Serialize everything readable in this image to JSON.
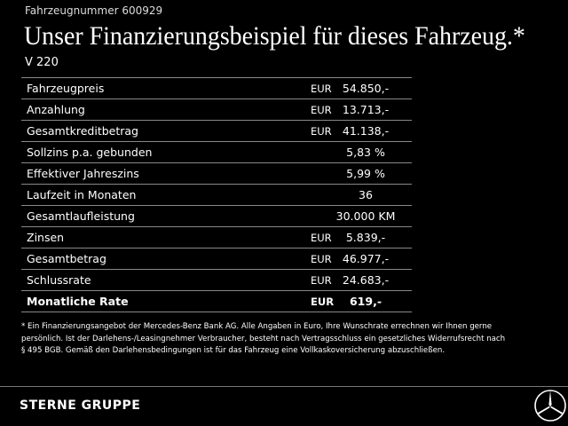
{
  "header": {
    "vehicle_number": "Fahrzeugnummer 600929",
    "title": "Unser Finanzierungsbeispiel für dieses Fahrzeug.*",
    "model": "V 220"
  },
  "table": {
    "rows": [
      {
        "label": "Fahrzeugpreis",
        "currency": "EUR",
        "value": "54.850,-"
      },
      {
        "label": "Anzahlung",
        "currency": "EUR",
        "value": "13.713,-"
      },
      {
        "label": "Gesamtkreditbetrag",
        "currency": "EUR",
        "value": "41.138,-"
      },
      {
        "label": "Sollzins p.a. gebunden",
        "value": "5,83 %"
      },
      {
        "label": "Effektiver Jahreszins",
        "value": "5,99 %"
      },
      {
        "label": "Laufzeit in Monaten",
        "value": "36"
      },
      {
        "label": "Gesamtlaufleistung",
        "value": "30.000 KM"
      },
      {
        "label": "Zinsen",
        "currency": "EUR",
        "value": "5.839,-"
      },
      {
        "label": "Gesamtbetrag",
        "currency": "EUR",
        "value": "46.977,-"
      },
      {
        "label": "Schlussrate",
        "currency": "EUR",
        "value": "24.683,-"
      },
      {
        "label": "Monatliche Rate",
        "currency": "EUR",
        "value": "619,-"
      }
    ]
  },
  "footnote": [
    "* Ein Finanzierungsangebot der Mercedes-Benz Bank AG. Alle Angaben in Euro, Ihre Wunschrate errechnen wir Ihnen gerne",
    "persönlich. Ist der Darlehens-/Leasingnehmer Verbraucher, besteht nach Vertragsschluss ein gesetzliches Widerrufsrecht nach",
    "§ 495 BGB. Gemäß den Darlehensbedingungen ist für das Fahrzeug eine Vollkaskoversicherung abzuschließen."
  ],
  "footer": {
    "brand": "STERNE GRUPPE"
  }
}
